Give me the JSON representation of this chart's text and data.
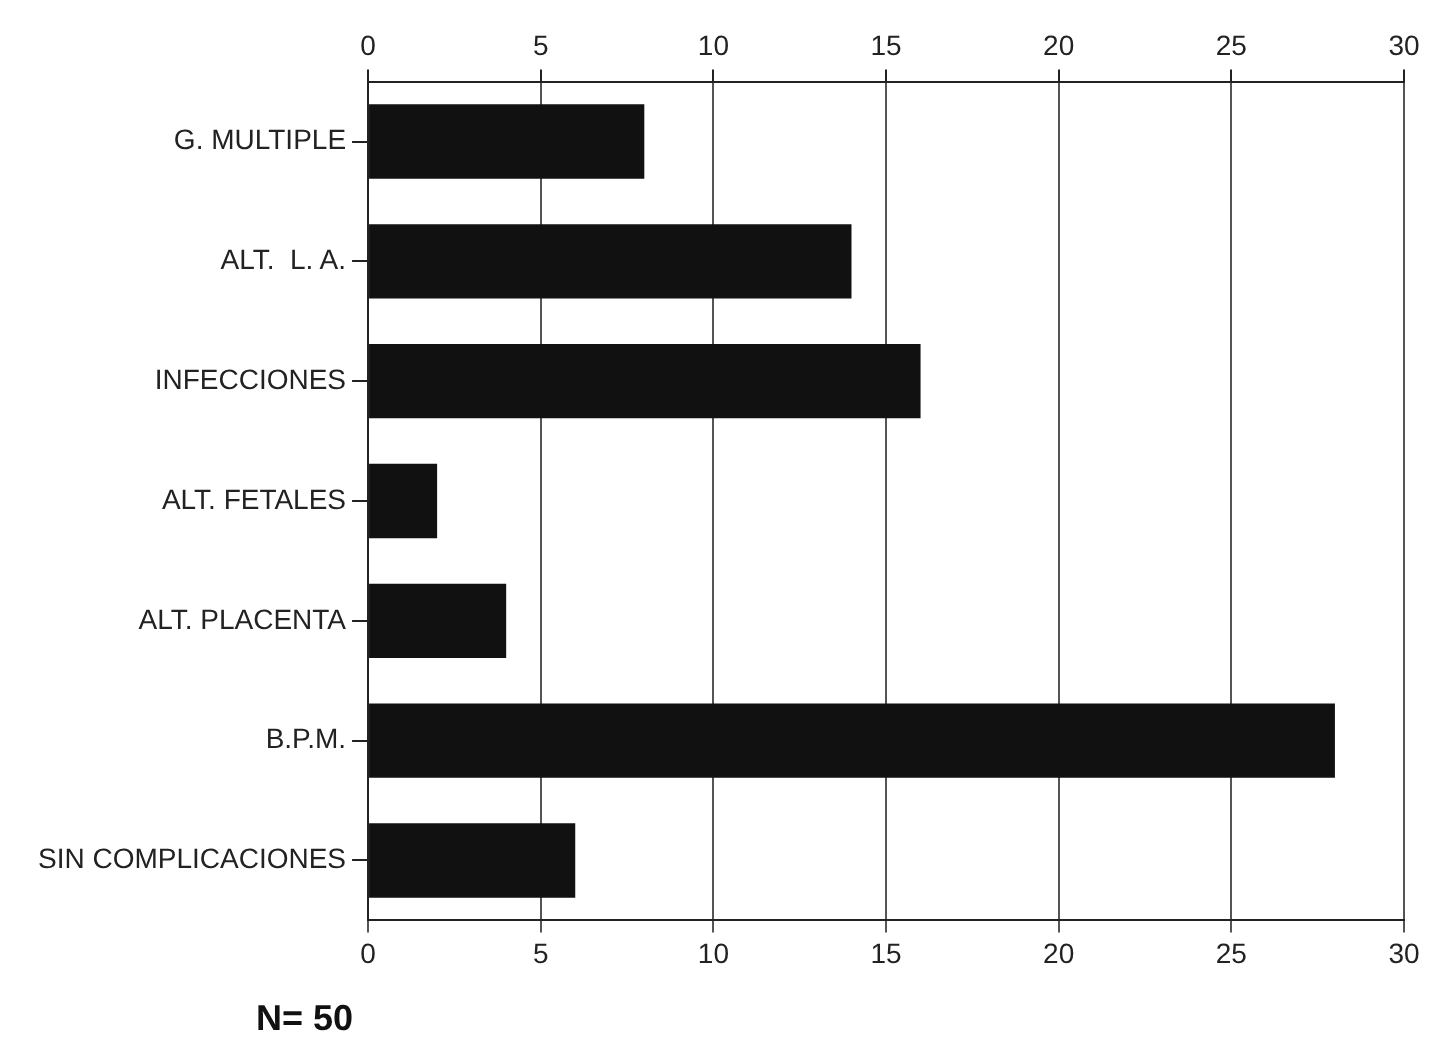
{
  "chart_data": {
    "type": "bar",
    "orientation": "horizontal",
    "categories": [
      "G. MULTIPLE",
      "ALT.  L. A.",
      "INFECCIONES",
      "ALT. FETALES",
      "ALT. PLACENTA",
      "B.P.M.",
      "SIN COMPLICACIONES"
    ],
    "values": [
      8,
      14,
      16,
      2,
      4,
      28,
      6
    ],
    "color": "#111111",
    "xlim": [
      0,
      30
    ],
    "xticks": [
      0,
      5,
      10,
      15,
      20,
      25,
      30
    ],
    "x2lim": [
      0,
      30
    ],
    "x2ticks": [
      0,
      5,
      10,
      15,
      20,
      25,
      30
    ],
    "grid": "x",
    "legend": false,
    "annotations": [
      "N= 50"
    ]
  }
}
